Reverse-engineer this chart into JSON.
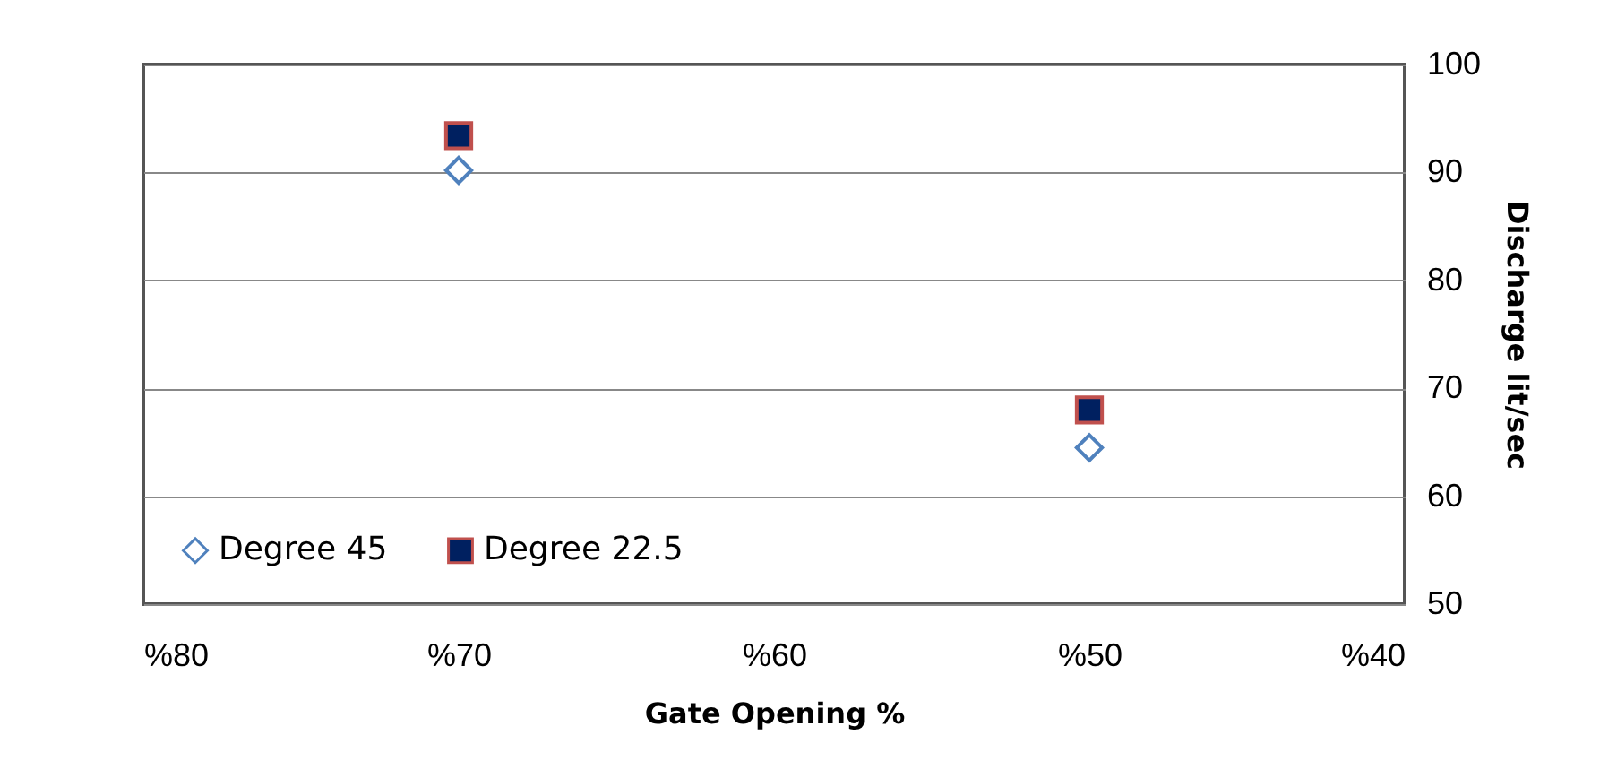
{
  "chart_data": {
    "type": "scatter",
    "xlabel": "Gate Opening %",
    "ylabel": "Discharge lit/sec",
    "x": [
      70,
      50
    ],
    "series": [
      {
        "name": "Degree 45",
        "color": "#4f81bd",
        "marker": "diamond",
        "values": [
          90.2,
          64.5
        ]
      },
      {
        "name": "Degree 22.5",
        "color": "#002060",
        "marker": "square",
        "values": [
          93.4,
          68
        ]
      }
    ],
    "xlim": [
      80,
      40
    ],
    "xticks": [
      {
        "value": 80,
        "label": "%80"
      },
      {
        "value": 70,
        "label": "%70"
      },
      {
        "value": 60,
        "label": "%60"
      },
      {
        "value": 50,
        "label": "%50"
      },
      {
        "value": 40,
        "label": "%40"
      }
    ],
    "ylim": [
      50,
      100
    ],
    "yticks": [
      50,
      60,
      70,
      80,
      90,
      100
    ],
    "grid": "y",
    "legend": "bottom left"
  }
}
